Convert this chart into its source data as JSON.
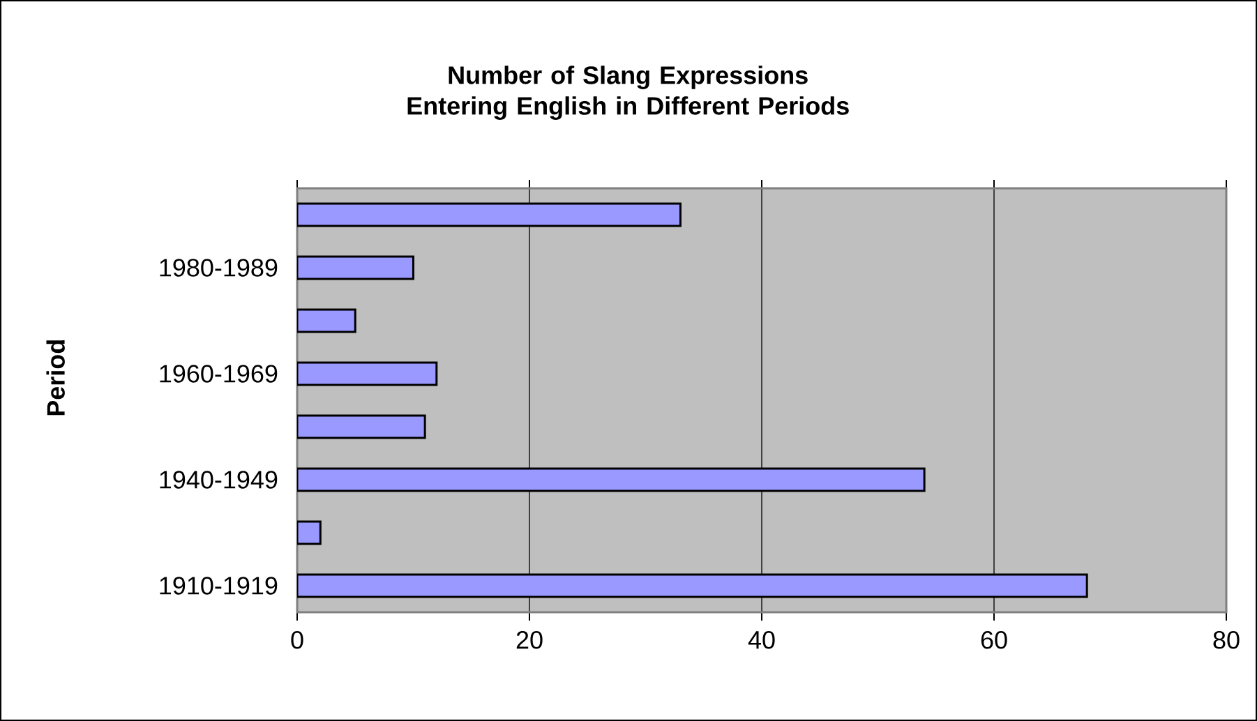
{
  "chart_data": {
    "type": "bar",
    "orientation": "horizontal",
    "title": "Number of Slang Expressions Entering English in Different Periods",
    "ylabel": "Period",
    "categories": [
      null,
      "1980-1989",
      null,
      "1960-1969",
      null,
      "1940-1949",
      null,
      "1910-1919"
    ],
    "values": [
      33,
      10,
      5,
      12,
      11,
      54,
      2,
      68
    ],
    "color": "#9999ff",
    "xlim": [
      0,
      80
    ],
    "xticks": [
      0,
      20,
      40,
      60,
      80
    ],
    "grid": "x"
  }
}
